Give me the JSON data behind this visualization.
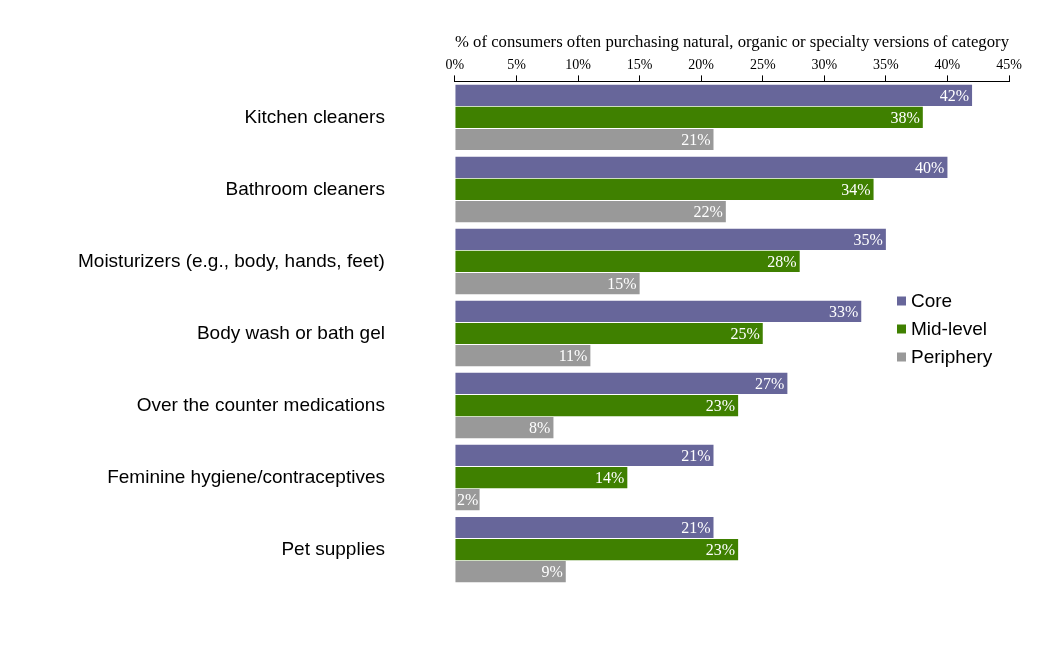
{
  "chart_data": {
    "type": "bar",
    "orientation": "horizontal",
    "xlabel": "% of consumers often purchasing natural, organic or specialty versions of category",
    "categories": [
      "Kitchen cleaners",
      "Bathroom cleaners",
      "Moisturizers (e.g., body, hands, feet)",
      "Body wash or bath gel",
      "Over the counter medications",
      "Feminine hygiene/contraceptives",
      "Pet supplies"
    ],
    "series": [
      {
        "name": "Core",
        "color": "#67669a",
        "values": [
          42,
          40,
          35,
          33,
          27,
          21,
          21
        ],
        "value_labels": [
          "42%",
          "40%",
          "35%",
          "33%",
          "27%",
          "21%",
          "21%"
        ]
      },
      {
        "name": "Mid-level",
        "color": "#3f8000",
        "values": [
          38,
          34,
          28,
          25,
          23,
          14,
          23
        ],
        "value_labels": [
          "38%",
          "34%",
          "28%",
          "25%",
          "23%",
          "14%",
          "23%"
        ]
      },
      {
        "name": "Periphery",
        "color": "#999999",
        "values": [
          21,
          22,
          15,
          11,
          8,
          2,
          9
        ],
        "value_labels": [
          "21%",
          "22%",
          "15%",
          "11%",
          "8%",
          "2%",
          "9%"
        ]
      }
    ],
    "xlim": [
      0,
      45
    ],
    "xticks": [
      {
        "value": 0,
        "label": "0%"
      },
      {
        "value": 5,
        "label": "5%"
      },
      {
        "value": 10,
        "label": "10%"
      },
      {
        "value": 15,
        "label": "15%"
      },
      {
        "value": 20,
        "label": "20%"
      },
      {
        "value": 25,
        "label": "25%"
      },
      {
        "value": 30,
        "label": "30%"
      },
      {
        "value": 35,
        "label": "35%"
      },
      {
        "value": 40,
        "label": "40%"
      },
      {
        "value": 45,
        "label": "45%"
      }
    ],
    "grid": false,
    "legend": "right"
  }
}
